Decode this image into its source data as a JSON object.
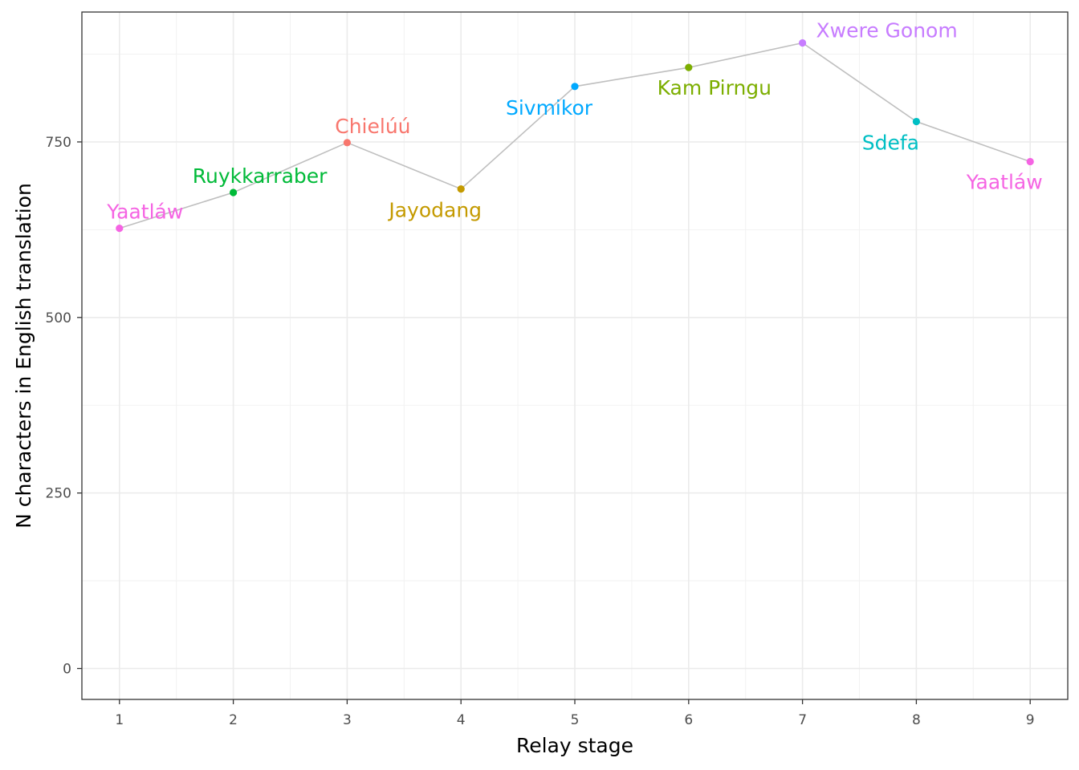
{
  "chart_data": {
    "type": "line",
    "xlabel": "Relay stage",
    "ylabel": "N characters in English translation",
    "x_ticks": [
      1,
      2,
      3,
      4,
      5,
      6,
      7,
      8,
      9
    ],
    "y_ticks": [
      0,
      250,
      500,
      750
    ],
    "xlim": [
      0.67,
      9.33
    ],
    "ylim": [
      -44,
      935
    ],
    "grid": true,
    "line_color": "#bfbfbf",
    "points": [
      {
        "x": 1,
        "y": 627,
        "label": "Yaatláw",
        "color": "#F564E3"
      },
      {
        "x": 2,
        "y": 678,
        "label": "Ruykkarraber",
        "color": "#00BA38"
      },
      {
        "x": 3,
        "y": 749,
        "label": "Chielúú",
        "color": "#F8766D"
      },
      {
        "x": 4,
        "y": 683,
        "label": "Jayodang",
        "color": "#C49A00"
      },
      {
        "x": 5,
        "y": 829,
        "label": "Sivmikor",
        "color": "#00A9FF"
      },
      {
        "x": 6,
        "y": 856,
        "label": "Kam Pirngu",
        "color": "#7CAE00"
      },
      {
        "x": 7,
        "y": 891,
        "label": "Xwere Gonom",
        "color": "#C77CFF"
      },
      {
        "x": 8,
        "y": 779,
        "label": "Sdefa",
        "color": "#00BFC4"
      },
      {
        "x": 9,
        "y": 722,
        "label": "Yaatláw",
        "color": "#F564E3"
      }
    ]
  }
}
